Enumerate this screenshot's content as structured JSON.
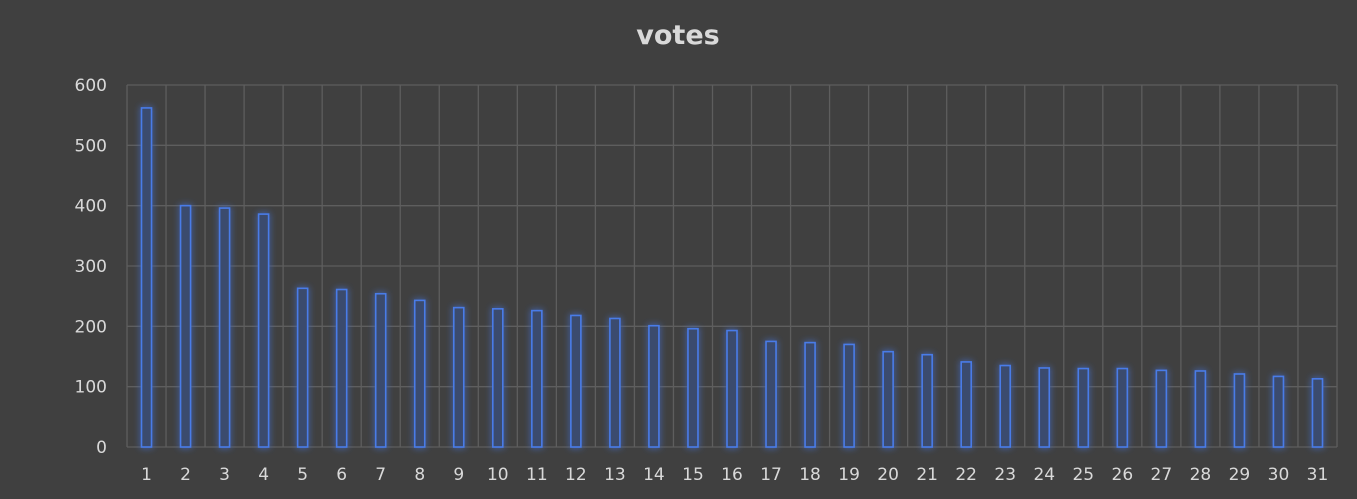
{
  "chart_data": {
    "type": "bar",
    "title": "votes",
    "xlabel": "",
    "ylabel": "",
    "categories": [
      "1",
      "2",
      "3",
      "4",
      "5",
      "6",
      "7",
      "8",
      "9",
      "10",
      "11",
      "12",
      "13",
      "14",
      "15",
      "16",
      "17",
      "18",
      "19",
      "20",
      "21",
      "22",
      "23",
      "24",
      "25",
      "26",
      "27",
      "28",
      "29",
      "30",
      "31"
    ],
    "values": [
      562,
      400,
      396,
      386,
      263,
      261,
      254,
      243,
      231,
      229,
      226,
      218,
      213,
      201,
      196,
      193,
      175,
      173,
      170,
      158,
      153,
      141,
      135,
      131,
      130,
      130,
      127,
      126,
      121,
      117,
      113
    ],
    "ylim": [
      0,
      600
    ],
    "yticks": [
      0,
      100,
      200,
      300,
      400,
      500,
      600
    ],
    "grid": {
      "horizontal": true,
      "vertical": true
    },
    "legend": "none",
    "colors": {
      "background": "#404040",
      "bar_fill": "#3b4b6e",
      "bar_stroke": "#4a7be8",
      "bar_glow": "#2f63d6",
      "grid": "#5e5e5e",
      "text": "#d9d9d9"
    }
  }
}
